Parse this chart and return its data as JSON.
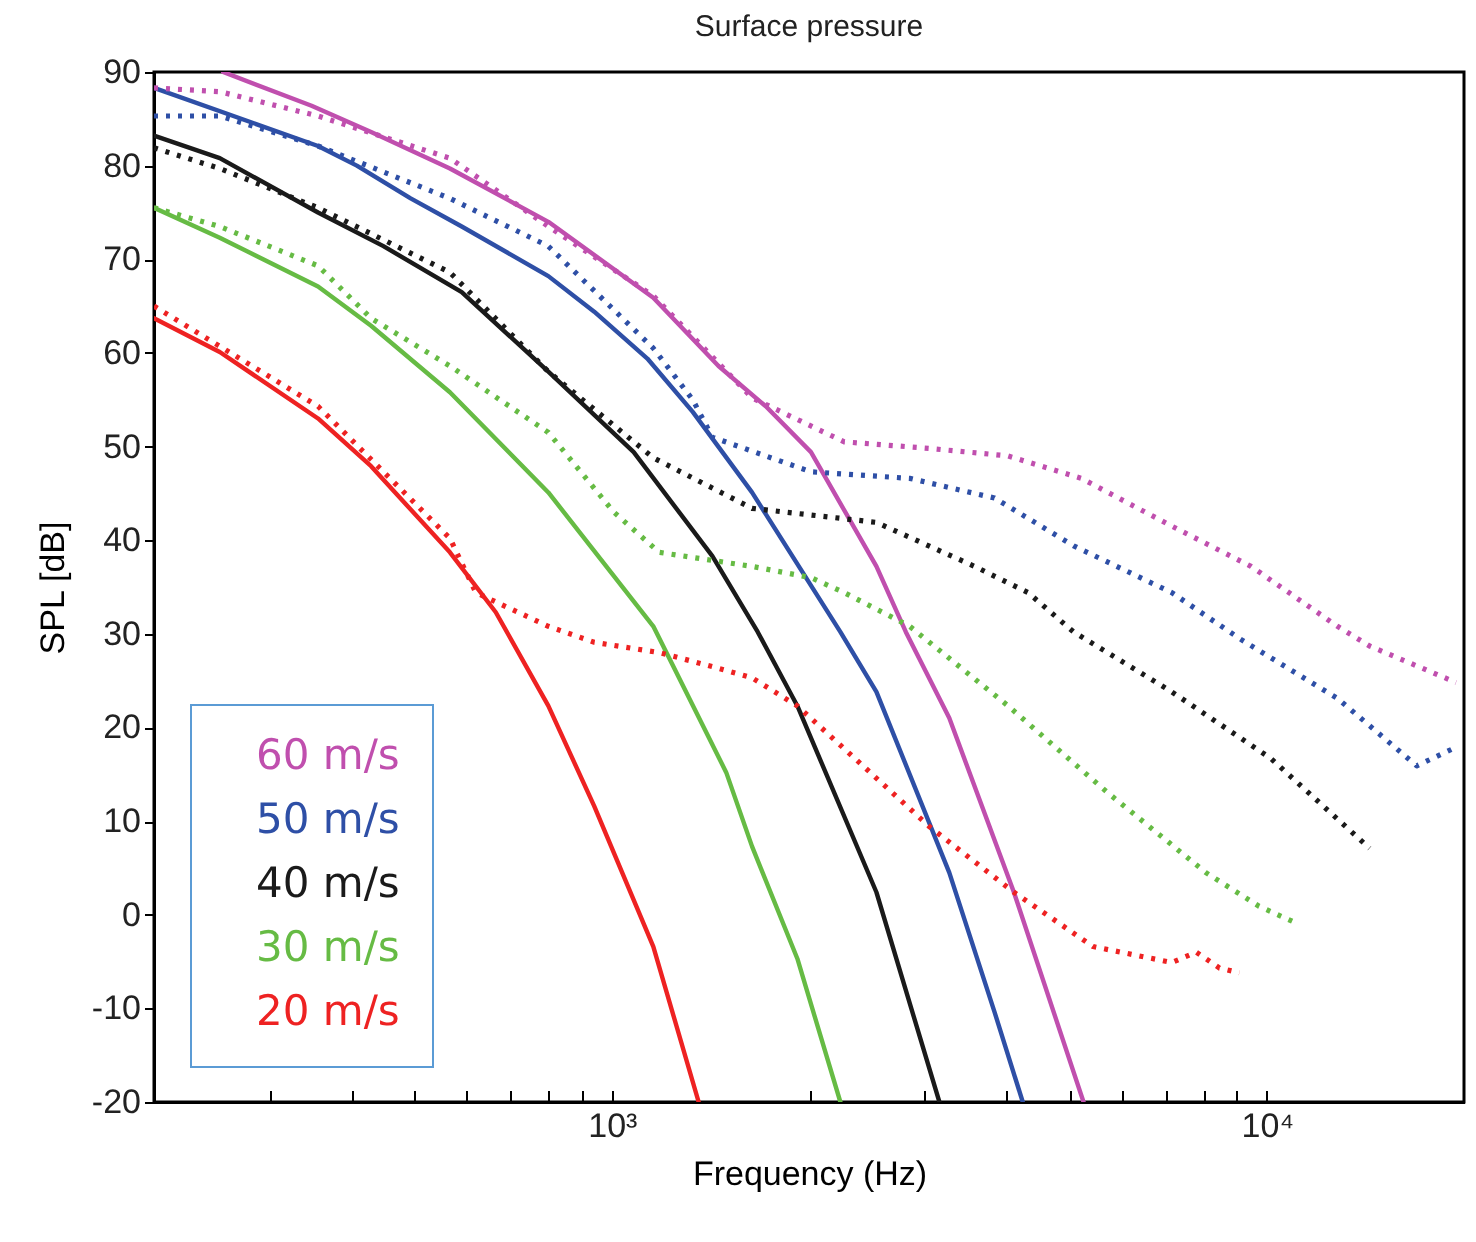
{
  "chart_data": {
    "type": "line",
    "title": "Surface pressure",
    "xlabel": "Frequency (Hz)",
    "ylabel": "SPL [dB]",
    "log": "x",
    "xlim": [
      200,
      20000
    ],
    "xticks": [
      {
        "value": 300,
        "label": null
      },
      {
        "value": 400,
        "label": null
      },
      {
        "value": 500,
        "label": null
      },
      {
        "value": 600,
        "label": null
      },
      {
        "value": 700,
        "label": null
      },
      {
        "value": 800,
        "label": null
      },
      {
        "value": 900,
        "label": null
      },
      {
        "value": 1000,
        "label": "10³"
      },
      {
        "value": 2000,
        "label": null
      },
      {
        "value": 3000,
        "label": null
      },
      {
        "value": 4000,
        "label": null
      },
      {
        "value": 5000,
        "label": null
      },
      {
        "value": 6000,
        "label": null
      },
      {
        "value": 7000,
        "label": null
      },
      {
        "value": 8000,
        "label": null
      },
      {
        "value": 9000,
        "label": null
      },
      {
        "value": 10000,
        "label": "10⁴"
      }
    ],
    "ylim": [
      -20,
      90
    ],
    "yticks": [
      -20,
      -10,
      0,
      10,
      20,
      30,
      40,
      50,
      60,
      70,
      80,
      90
    ],
    "grid": false,
    "legend": "bottom left",
    "marker": "none",
    "series": [
      {
        "name": "60 m/s",
        "color": "#c04fae",
        "line_style": "solid",
        "x": [
          255,
          348,
          429,
          566,
          800,
          1157,
          1455,
          1718,
          2014,
          2535,
          2811,
          3275,
          4110,
          5250
        ],
        "values": [
          90,
          86.4,
          83.6,
          79.7,
          74,
          65.9,
          58.6,
          54.3,
          49.4,
          37.2,
          30.2,
          21,
          2.4,
          -20
        ]
      },
      {
        "name": "50 m/s",
        "color": "#2e4fa6",
        "line_style": "solid",
        "x": [
          200,
          356,
          408,
          493,
          590,
          800,
          940,
          1133,
          1329,
          1637,
          2233,
          2535,
          3275,
          3840,
          4240
        ],
        "values": [
          88.3,
          82.1,
          80,
          76.5,
          73.5,
          68.2,
          64.4,
          59.4,
          53.7,
          45.1,
          30.2,
          23.8,
          4.5,
          -10.4,
          -20
        ]
      },
      {
        "name": "40 m/s",
        "color": "#1a1a1a",
        "line_style": "solid",
        "x": [
          200,
          252,
          356,
          448,
          590,
          800,
          1080,
          1424,
          1670,
          1920,
          2535,
          3163
        ],
        "values": [
          83.2,
          80.8,
          75,
          71.4,
          66.5,
          58,
          49.4,
          38.3,
          30.2,
          22.3,
          2.4,
          -20
        ]
      },
      {
        "name": "30 m/s",
        "color": "#66bb44",
        "line_style": "solid",
        "x": [
          200,
          252,
          356,
          429,
          566,
          800,
          1157,
          1495,
          1637,
          1920,
          2233
        ],
        "values": [
          75.5,
          72.3,
          67.1,
          62.9,
          55.8,
          45.1,
          30.8,
          15.2,
          7.3,
          -4.7,
          -20
        ]
      },
      {
        "name": "20 m/s",
        "color": "#ee2222",
        "line_style": "solid",
        "x": [
          200,
          252,
          356,
          429,
          566,
          665,
          800,
          940,
          1157,
          1357
        ],
        "values": [
          63.7,
          60.1,
          53,
          47.9,
          38.7,
          32.3,
          22.3,
          11.6,
          -3.4,
          -20
        ]
      },
      {
        "color": "#c04fae",
        "line_style": "dotted",
        "x": [
          200,
          252,
          356,
          566,
          800,
          1157,
          1637,
          2264,
          3055,
          4027,
          5210,
          7160,
          9460,
          12820,
          14350,
          19450
        ],
        "values": [
          88.3,
          87.9,
          85.3,
          80.8,
          73.5,
          66.1,
          55.2,
          50.5,
          49.8,
          49,
          46.6,
          41.5,
          37.2,
          30.8,
          28.7,
          24.8
        ]
      },
      {
        "color": "#2e4fa6",
        "line_style": "dotted",
        "x": [
          200,
          252,
          356,
          566,
          800,
          1157,
          1329,
          1424,
          2014,
          2850,
          3840,
          5070,
          7160,
          9080,
          12820,
          16940,
          19600
        ],
        "values": [
          85.3,
          85.3,
          82.1,
          76.5,
          71.4,
          60.5,
          55,
          51,
          47.3,
          46.6,
          44.5,
          39.4,
          34.4,
          29.5,
          23.1,
          15.9,
          18
        ]
      },
      {
        "color": "#1a1a1a",
        "line_style": "dotted",
        "x": [
          200,
          252,
          356,
          566,
          800,
          1157,
          1637,
          2535,
          3580,
          4320,
          5070,
          7160,
          10140,
          14350
        ],
        "values": [
          81.9,
          79.7,
          75.5,
          68.6,
          58,
          48.8,
          43.4,
          41.9,
          37.2,
          34.4,
          30.2,
          23.8,
          16.7,
          7.1
        ]
      },
      {
        "color": "#66bb44",
        "line_style": "dotted",
        "x": [
          200,
          252,
          356,
          429,
          566,
          800,
          1007,
          1181,
          1637,
          2014,
          2264,
          2850,
          4027,
          5700,
          8070,
          9730,
          11020
        ],
        "values": [
          75.5,
          73.5,
          69.3,
          63.7,
          58.6,
          51.5,
          43,
          38.7,
          37.2,
          36,
          34.4,
          30.8,
          22.3,
          13.1,
          4.5,
          0.9,
          -0.8
        ]
      },
      {
        "color": "#ee2222",
        "line_style": "dotted",
        "x": [
          200,
          356,
          566,
          620,
          800,
          940,
          1181,
          1424,
          1637,
          1920,
          3055,
          4110,
          5430,
          7160,
          7800,
          8470,
          9080
        ],
        "values": [
          65,
          54.3,
          40.2,
          34.4,
          30.8,
          29.1,
          28,
          26.5,
          25.3,
          22.3,
          9.4,
          2.4,
          -3.4,
          -5.1,
          -4,
          -5.7,
          -6.2
        ]
      }
    ]
  }
}
